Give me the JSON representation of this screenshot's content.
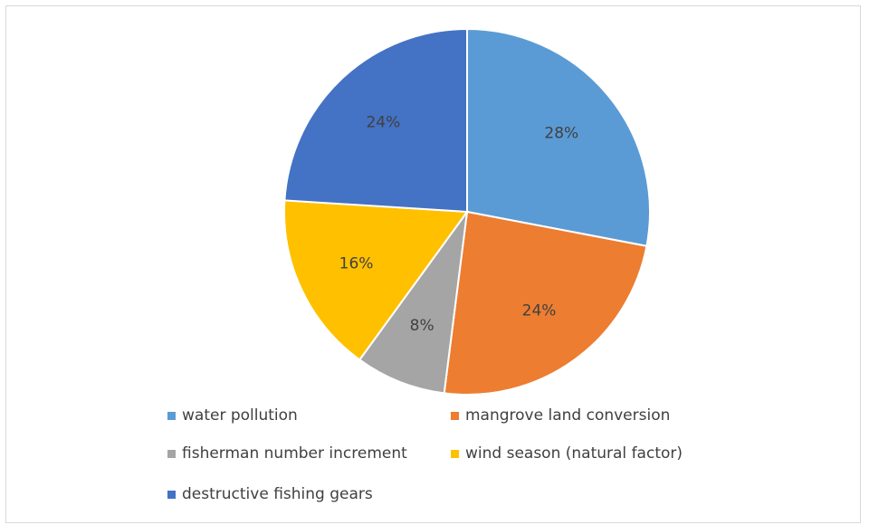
{
  "chart_data": {
    "type": "pie",
    "title": "",
    "categories": [
      "water pollution",
      "mangrove land conversion",
      "fisherman number increment",
      "wind season (natural factor)",
      "destructive fishing gears"
    ],
    "values": [
      28,
      24,
      8,
      16,
      24
    ],
    "labels": [
      "28%",
      "24%",
      "8%",
      "16%",
      "24%"
    ],
    "colors": [
      "#5b9bd5",
      "#ed7d31",
      "#a5a5a5",
      "#ffc000",
      "#4472c4"
    ],
    "legend_position": "bottom",
    "start_angle": "top",
    "direction": "clockwise"
  }
}
